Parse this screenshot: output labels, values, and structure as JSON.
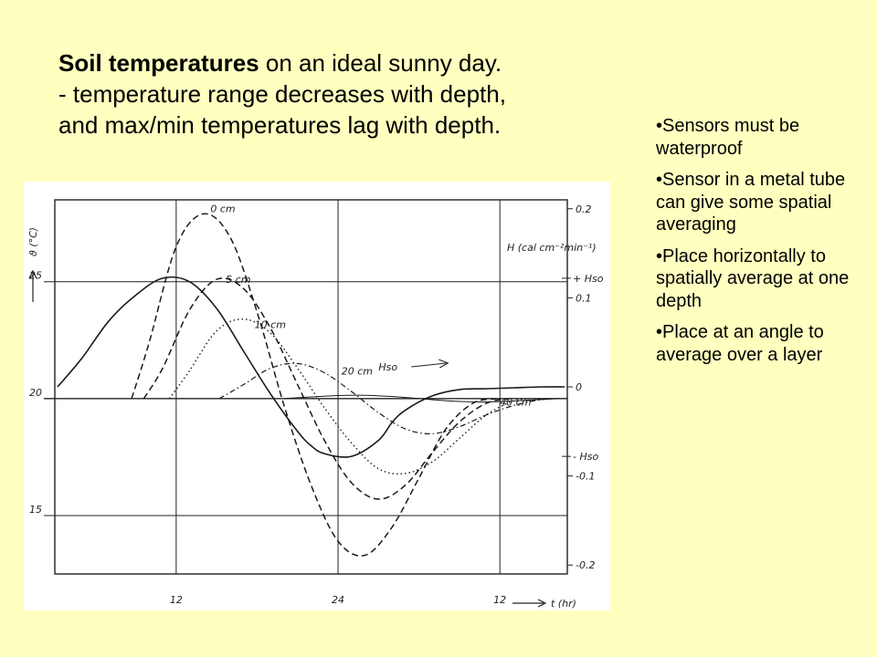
{
  "headline": {
    "bold": "Soil temperatures",
    "line1_rest": " on an ideal sunny day.",
    "line2": "- temperature range decreases with depth,",
    "line3": "and max/min temperatures lag with depth."
  },
  "notes": [
    "•Sensors must be waterproof",
    "•Sensor in a metal tube can give some spatial averaging",
    "•Place horizontally to spatially average at one depth",
    "•Place at an angle to average over a layer"
  ],
  "chart_data": {
    "type": "line",
    "ylabel_left": "ϑ (°C)",
    "ylabel_right": "H (cal cm⁻²min⁻¹)",
    "xlabel": "t (hr)",
    "x_ticks": [
      "12",
      "24",
      "12"
    ],
    "y_left_ticks": [
      "25",
      "20",
      "15"
    ],
    "y_right_ticks": [
      "0.2",
      "0.1",
      "0",
      "-0.1",
      "-0.2"
    ],
    "right_marks": [
      "+ Hso",
      "- Hso"
    ],
    "grid": true,
    "ylim_left": [
      12.5,
      28.5
    ],
    "ylim_right": [
      -0.21,
      0.21
    ],
    "xlim": [
      3,
      41
    ],
    "series": [
      {
        "name": "0 cm",
        "axis": "left",
        "style": "dashed",
        "x": [
          8.7,
          10,
          12,
          14,
          16,
          18,
          20,
          22,
          24,
          26,
          28,
          30,
          32,
          34,
          35.8
        ],
        "y": [
          20,
          22.4,
          26.5,
          27.9,
          26.9,
          23.7,
          19.7,
          16.3,
          13.9,
          13.3,
          14.5,
          16.6,
          18.7,
          19.8,
          20
        ]
      },
      {
        "name": "5 cm",
        "axis": "left",
        "style": "dashed",
        "x": [
          9.6,
          11,
          13,
          15,
          17,
          19,
          21,
          23,
          25,
          27,
          29,
          31,
          33,
          35,
          36.8
        ],
        "y": [
          20,
          21.3,
          23.8,
          25.1,
          24.7,
          23.0,
          20.6,
          18.2,
          16.4,
          15.7,
          16.3,
          17.7,
          19.0,
          19.8,
          20
        ]
      },
      {
        "name": "10 cm",
        "axis": "left",
        "style": "dotted",
        "x": [
          11.5,
          13,
          15,
          17,
          19,
          21,
          23,
          25,
          27,
          29,
          31,
          33,
          35,
          37,
          38.5
        ],
        "y": [
          20,
          21.2,
          22.9,
          23.4,
          22.8,
          21.3,
          19.6,
          18.1,
          17.0,
          16.8,
          17.3,
          18.3,
          19.3,
          19.9,
          20
        ]
      },
      {
        "name": "20 cm",
        "axis": "left",
        "style": "dash-dot",
        "x": [
          15.2,
          17,
          19,
          21,
          23,
          25,
          27,
          29,
          31,
          33,
          35,
          37,
          39,
          40.5
        ],
        "y": [
          20,
          20.6,
          21.3,
          21.5,
          21.1,
          20.3,
          19.4,
          18.7,
          18.5,
          18.8,
          19.3,
          19.7,
          19.95,
          20
        ]
      },
      {
        "name": "40 cm",
        "axis": "left",
        "style": "solid-thin",
        "x": [
          20,
          22,
          24,
          26,
          28,
          30,
          32,
          34,
          36,
          38,
          40,
          41
        ],
        "y": [
          20,
          20.07,
          20.13,
          20.14,
          20.09,
          20.0,
          19.91,
          19.86,
          19.87,
          19.93,
          19.99,
          20
        ]
      },
      {
        "name": "Hso",
        "axis": "right",
        "style": "solid",
        "x": [
          3.2,
          5,
          7,
          9,
          11,
          13,
          15,
          17,
          19,
          21,
          22,
          23,
          25,
          27,
          28,
          29,
          31,
          33,
          35,
          37,
          39,
          40.8
        ],
        "y": [
          0.0,
          0.032,
          0.074,
          0.103,
          0.122,
          0.118,
          0.088,
          0.04,
          -0.008,
          -0.05,
          -0.066,
          -0.075,
          -0.078,
          -0.06,
          -0.04,
          -0.026,
          -0.01,
          -0.003,
          -0.002,
          -0.001,
          0.0,
          0.0
        ]
      }
    ]
  }
}
